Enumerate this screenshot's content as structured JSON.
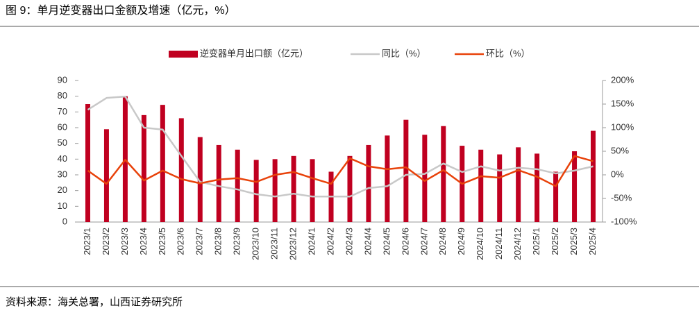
{
  "chart_data": {
    "type": "bar-line",
    "title": "图 9：单月逆变器出口金额及增速（亿元，%）",
    "source": "资料来源：海关总署，山西证券研究所",
    "categories": [
      "2023/1",
      "2023/2",
      "2023/3",
      "2023/4",
      "2023/5",
      "2023/6",
      "2023/7",
      "2023/8",
      "2023/9",
      "2023/10",
      "2023/11",
      "2023/12",
      "2024/1",
      "2024/2",
      "2024/3",
      "2024/4",
      "2024/5",
      "2024/6",
      "2024/7",
      "2024/8",
      "2024/9",
      "2024/10",
      "2024/11",
      "2024/12",
      "2025/1",
      "2025/2",
      "2025/3",
      "2025/4"
    ],
    "series": [
      {
        "name": "逆变器单月出口额（亿元）",
        "type": "bar",
        "color": "#c00020",
        "values": [
          75,
          59,
          80,
          68,
          74.5,
          66,
          54,
          49,
          46,
          39.5,
          40,
          42,
          40,
          32,
          42,
          49,
          55,
          65,
          55.5,
          61,
          48.5,
          46,
          43,
          47.5,
          43.5,
          32,
          45,
          58
        ]
      },
      {
        "name": "同比（%）",
        "type": "line",
        "axis": "y2",
        "color": "#c8c8c8",
        "values": [
          138,
          163,
          166,
          100,
          96,
          40,
          -15,
          -24,
          -31,
          -41,
          -46,
          -40,
          -46,
          -46,
          -46,
          -28,
          -24,
          0,
          2,
          24,
          6,
          18,
          9,
          15,
          12,
          3,
          9,
          18
        ]
      },
      {
        "name": "环比（%）",
        "type": "line",
        "axis": "y2",
        "color": "#e8420a",
        "values": [
          9,
          -19,
          32,
          -12,
          9,
          -9,
          -18,
          -10,
          -7,
          -15,
          0,
          6,
          -7,
          -19,
          35,
          18,
          12,
          16,
          -13,
          10,
          -19,
          -3,
          -6,
          10,
          -4,
          -24,
          40,
          29
        ]
      }
    ],
    "ylim": [
      0,
      90
    ],
    "yticks": [
      0,
      10,
      20,
      30,
      40,
      50,
      60,
      70,
      80,
      90
    ],
    "y2lim": [
      -100,
      200
    ],
    "y2ticks": [
      {
        "value": -100,
        "label": "-100%"
      },
      {
        "value": -50,
        "label": "-50%"
      },
      {
        "value": 0,
        "label": "0%"
      },
      {
        "value": 50,
        "label": "50%"
      },
      {
        "value": 100,
        "label": "100%"
      },
      {
        "value": 150,
        "label": "150%"
      },
      {
        "value": 200,
        "label": "200%"
      }
    ]
  }
}
